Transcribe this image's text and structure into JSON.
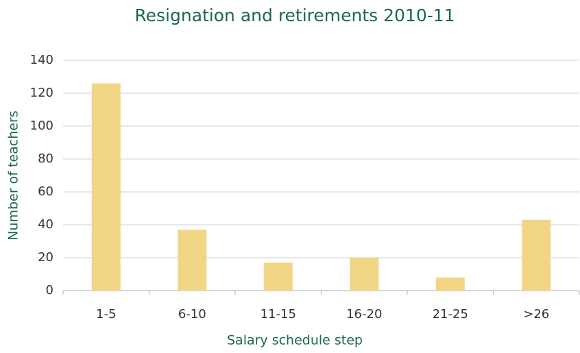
{
  "chart_data": {
    "type": "bar",
    "title": "Resignation and retirements 2010-11",
    "x_label": "Salary schedule step",
    "y_label": "Number of teachers",
    "categories": [
      "1-5",
      "6-10",
      "11-15",
      "16-20",
      "21-25",
      ">26"
    ],
    "values": [
      126,
      37,
      17,
      20,
      8,
      43
    ],
    "color": "#f2d585",
    "ylim": [
      0,
      140
    ],
    "yticks": [
      0,
      20,
      40,
      60,
      80,
      100,
      120,
      140
    ],
    "grid": true
  }
}
